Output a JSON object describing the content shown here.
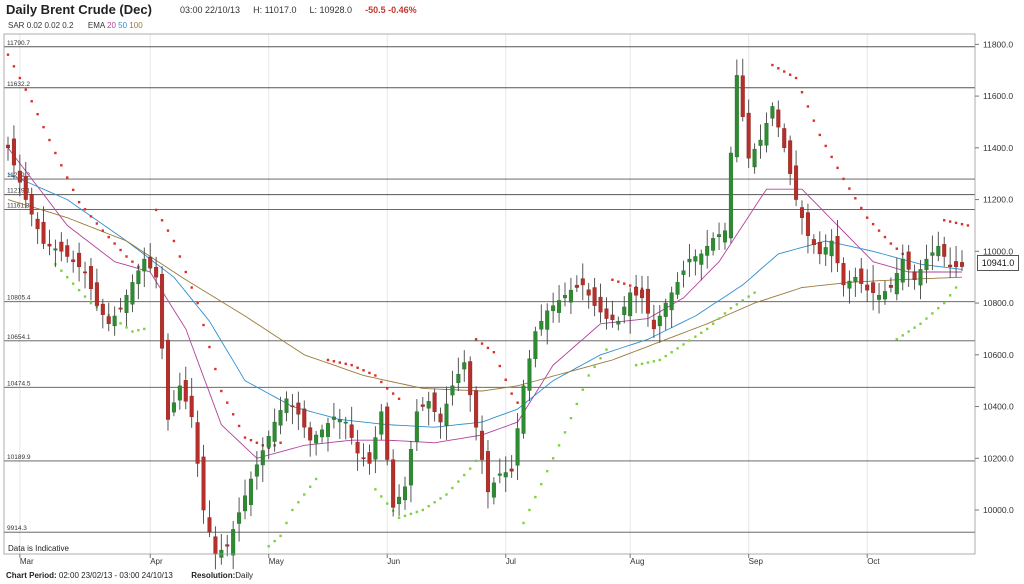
{
  "header": {
    "title": "Daily Brent Crude (Dec)",
    "timestamp": "03:00 22/10/13",
    "high": "H: 11017.0",
    "low": "L: 10928.0",
    "change": "-50.5",
    "change_pct": "-0.46%"
  },
  "indicators": {
    "sar_label": "SAR",
    "sar_params": "0.02  0.02  0.2",
    "ema_label": "EMA",
    "ema20": "20",
    "ema50": "50",
    "ema100": "100"
  },
  "footer": {
    "period_label": "Chart Period:",
    "period_value": "02:00 23/02/13 - 03:00 24/10/13",
    "resolution_label": "Resolution:",
    "resolution_value": "Daily"
  },
  "disclaimer": "Data is Indicative",
  "last_price": "10941.0",
  "chart_data": {
    "type": "candlestick",
    "title": "Daily Brent Crude (Dec)",
    "ylim": [
      9830,
      11840
    ],
    "yticks": [
      10000,
      10200,
      10400,
      10600,
      10800,
      11000,
      11200,
      11400,
      11600,
      11800
    ],
    "ytick_labels": [
      "10000.0",
      "10200.0",
      "10400.0",
      "10600.0",
      "10800.0",
      "11000.0",
      "11200.0",
      "11400.0",
      "11600.0",
      "11800.0"
    ],
    "x_categories": [
      "Mar",
      "Apr",
      "May",
      "Jun",
      "Jul",
      "Aug",
      "Sep",
      "Oct"
    ],
    "x_category_start_index": [
      2,
      24,
      44,
      64,
      84,
      105,
      125,
      145
    ],
    "n_days": 162,
    "horizontal_levels": [
      {
        "label": "11790.7",
        "value": 11790.7
      },
      {
        "label": "11632.2",
        "value": 11632.2
      },
      {
        "label": "11279.3",
        "value": 11279.3
      },
      {
        "label": "11219.1",
        "value": 11219.1
      },
      {
        "label": "11161.3",
        "value": 11161.3
      },
      {
        "label": "10805.4",
        "value": 10805.4
      },
      {
        "label": "10654.1",
        "value": 10654.1
      },
      {
        "label": "10474.5",
        "value": 10474.5
      },
      {
        "label": "10189.9",
        "value": 10189.9
      },
      {
        "label": "9914.3",
        "value": 9914.3
      }
    ],
    "close_path": [
      [
        0,
        11400
      ],
      [
        3,
        11200
      ],
      [
        6,
        11030
      ],
      [
        9,
        11000
      ],
      [
        11,
        10960
      ],
      [
        13,
        10920
      ],
      [
        15,
        10790
      ],
      [
        17,
        10720
      ],
      [
        19,
        10780
      ],
      [
        21,
        10880
      ],
      [
        23,
        10970
      ],
      [
        25,
        10900
      ],
      [
        27,
        10350
      ],
      [
        29,
        10480
      ],
      [
        31,
        10360
      ],
      [
        33,
        10000
      ],
      [
        35,
        9830
      ],
      [
        37,
        9860
      ],
      [
        39,
        9990
      ],
      [
        41,
        10120
      ],
      [
        43,
        10230
      ],
      [
        45,
        10340
      ],
      [
        47,
        10430
      ],
      [
        49,
        10370
      ],
      [
        51,
        10270
      ],
      [
        53,
        10310
      ],
      [
        55,
        10360
      ],
      [
        57,
        10340
      ],
      [
        59,
        10220
      ],
      [
        61,
        10180
      ],
      [
        63,
        10380
      ],
      [
        65,
        10010
      ],
      [
        67,
        10090
      ],
      [
        69,
        10380
      ],
      [
        71,
        10420
      ],
      [
        73,
        10340
      ],
      [
        75,
        10480
      ],
      [
        77,
        10570
      ],
      [
        79,
        10320
      ],
      [
        81,
        10070
      ],
      [
        83,
        10140
      ],
      [
        85,
        10150
      ],
      [
        87,
        10480
      ],
      [
        89,
        10690
      ],
      [
        91,
        10770
      ],
      [
        93,
        10810
      ],
      [
        95,
        10850
      ],
      [
        97,
        10870
      ],
      [
        99,
        10790
      ],
      [
        101,
        10740
      ],
      [
        103,
        10730
      ],
      [
        105,
        10840
      ],
      [
        107,
        10820
      ],
      [
        109,
        10700
      ],
      [
        111,
        10800
      ],
      [
        113,
        10880
      ],
      [
        115,
        10970
      ],
      [
        117,
        10990
      ],
      [
        119,
        11050
      ],
      [
        121,
        11080
      ],
      [
        123,
        11680
      ],
      [
        125,
        11360
      ],
      [
        127,
        11430
      ],
      [
        129,
        11560
      ],
      [
        131,
        11400
      ],
      [
        133,
        11200
      ],
      [
        135,
        11060
      ],
      [
        137,
        10990
      ],
      [
        139,
        11040
      ],
      [
        141,
        10870
      ],
      [
        143,
        10900
      ],
      [
        145,
        10850
      ],
      [
        147,
        10830
      ],
      [
        149,
        10860
      ],
      [
        151,
        10970
      ],
      [
        153,
        10890
      ],
      [
        155,
        10970
      ],
      [
        157,
        11020
      ],
      [
        159,
        10940
      ],
      [
        161,
        10941
      ]
    ],
    "ema_series": [
      {
        "name": "EMA 20",
        "color": "#b2439a",
        "points": [
          [
            0,
            11400
          ],
          [
            10,
            11100
          ],
          [
            18,
            10960
          ],
          [
            24,
            10920
          ],
          [
            30,
            10700
          ],
          [
            36,
            10330
          ],
          [
            42,
            10200
          ],
          [
            50,
            10250
          ],
          [
            58,
            10270
          ],
          [
            64,
            10270
          ],
          [
            72,
            10260
          ],
          [
            80,
            10290
          ],
          [
            86,
            10340
          ],
          [
            92,
            10560
          ],
          [
            100,
            10720
          ],
          [
            108,
            10740
          ],
          [
            114,
            10820
          ],
          [
            120,
            10960
          ],
          [
            128,
            11240
          ],
          [
            134,
            11240
          ],
          [
            140,
            11100
          ],
          [
            146,
            10960
          ],
          [
            152,
            10920
          ],
          [
            158,
            10920
          ],
          [
            161,
            10920
          ]
        ]
      },
      {
        "name": "EMA 50",
        "color": "#2f8fd0",
        "points": [
          [
            0,
            11300
          ],
          [
            10,
            11200
          ],
          [
            20,
            11040
          ],
          [
            28,
            10900
          ],
          [
            34,
            10730
          ],
          [
            40,
            10500
          ],
          [
            48,
            10400
          ],
          [
            56,
            10350
          ],
          [
            64,
            10330
          ],
          [
            72,
            10320
          ],
          [
            80,
            10340
          ],
          [
            86,
            10390
          ],
          [
            92,
            10500
          ],
          [
            100,
            10600
          ],
          [
            108,
            10660
          ],
          [
            116,
            10750
          ],
          [
            124,
            10870
          ],
          [
            130,
            10990
          ],
          [
            138,
            11040
          ],
          [
            146,
            11000
          ],
          [
            154,
            10950
          ],
          [
            161,
            10930
          ]
        ]
      },
      {
        "name": "EMA 100",
        "color": "#9a7a3a",
        "points": [
          [
            0,
            11200
          ],
          [
            10,
            11130
          ],
          [
            20,
            11040
          ],
          [
            30,
            10890
          ],
          [
            40,
            10750
          ],
          [
            50,
            10600
          ],
          [
            60,
            10520
          ],
          [
            70,
            10470
          ],
          [
            80,
            10460
          ],
          [
            86,
            10480
          ],
          [
            94,
            10530
          ],
          [
            102,
            10580
          ],
          [
            110,
            10650
          ],
          [
            118,
            10720
          ],
          [
            126,
            10800
          ],
          [
            134,
            10860
          ],
          [
            142,
            10880
          ],
          [
            150,
            10890
          ],
          [
            161,
            10900
          ]
        ]
      }
    ],
    "sar_segments": [
      {
        "trend": "down",
        "color": "#d9302a",
        "points": [
          [
            0,
            11760
          ],
          [
            4,
            11580
          ],
          [
            8,
            11380
          ],
          [
            12,
            11190
          ],
          [
            16,
            11080
          ],
          [
            20,
            10980
          ],
          [
            22,
            10940
          ]
        ]
      },
      {
        "trend": "up",
        "color": "#7fd13b",
        "points": [
          [
            8,
            10950
          ],
          [
            14,
            10800
          ],
          [
            21,
            10690
          ],
          [
            23,
            10700
          ]
        ]
      },
      {
        "trend": "down",
        "color": "#d9302a",
        "points": [
          [
            25,
            11160
          ],
          [
            28,
            11040
          ],
          [
            32,
            10800
          ],
          [
            36,
            10460
          ],
          [
            40,
            10280
          ],
          [
            44,
            10240
          ],
          [
            46,
            10260
          ]
        ]
      },
      {
        "trend": "up",
        "color": "#7fd13b",
        "points": [
          [
            44,
            9860
          ],
          [
            46,
            9900
          ],
          [
            48,
            10000
          ],
          [
            50,
            10060
          ],
          [
            52,
            10120
          ]
        ]
      },
      {
        "trend": "down",
        "color": "#d9302a",
        "points": [
          [
            54,
            10580
          ],
          [
            58,
            10560
          ],
          [
            62,
            10520
          ],
          [
            64,
            10470
          ],
          [
            66,
            10430
          ]
        ]
      },
      {
        "trend": "up",
        "color": "#7fd13b",
        "points": [
          [
            62,
            10080
          ],
          [
            66,
            9970
          ],
          [
            70,
            10000
          ],
          [
            74,
            10060
          ],
          [
            78,
            10160
          ],
          [
            80,
            10220
          ]
        ]
      },
      {
        "trend": "down",
        "color": "#d9302a",
        "points": [
          [
            79,
            10660
          ],
          [
            82,
            10610
          ],
          [
            85,
            10450
          ],
          [
            87,
            10380
          ]
        ]
      },
      {
        "trend": "up",
        "color": "#7fd13b",
        "points": [
          [
            87,
            9950
          ],
          [
            90,
            10100
          ],
          [
            94,
            10300
          ],
          [
            98,
            10520
          ],
          [
            101,
            10620
          ]
        ]
      },
      {
        "trend": "down",
        "color": "#d9302a",
        "points": [
          [
            102,
            10890
          ],
          [
            106,
            10860
          ],
          [
            108,
            10850
          ]
        ]
      },
      {
        "trend": "up",
        "color": "#7fd13b",
        "points": [
          [
            106,
            10560
          ],
          [
            110,
            10580
          ],
          [
            114,
            10640
          ],
          [
            118,
            10700
          ],
          [
            122,
            10780
          ],
          [
            126,
            10840
          ]
        ]
      },
      {
        "trend": "down",
        "color": "#d9302a",
        "points": [
          [
            129,
            11720
          ],
          [
            133,
            11670
          ],
          [
            137,
            11450
          ],
          [
            141,
            11280
          ],
          [
            145,
            11130
          ],
          [
            149,
            11030
          ],
          [
            151,
            10990
          ]
        ]
      },
      {
        "trend": "up",
        "color": "#7fd13b",
        "points": [
          [
            150,
            10660
          ],
          [
            154,
            10720
          ],
          [
            158,
            10800
          ],
          [
            160,
            10860
          ]
        ]
      },
      {
        "trend": "down",
        "color": "#d9302a",
        "points": [
          [
            158,
            11120
          ],
          [
            162,
            11100
          ]
        ]
      }
    ]
  }
}
